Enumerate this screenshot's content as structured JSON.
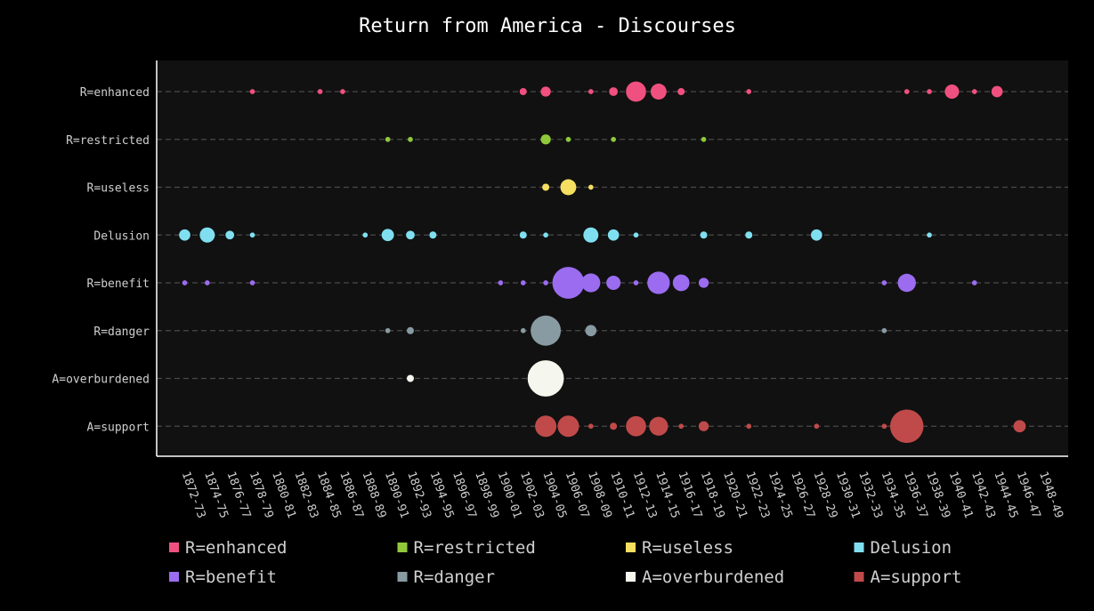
{
  "chart_data": {
    "type": "scatter",
    "title": "Return from America - Discourses",
    "xlabel": "",
    "ylabel": "",
    "x_categories": [
      "1872-73",
      "1874-75",
      "1876-77",
      "1878-79",
      "1880-81",
      "1882-83",
      "1884-85",
      "1886-87",
      "1888-89",
      "1890-91",
      "1892-93",
      "1894-95",
      "1896-97",
      "1898-99",
      "1900-01",
      "1902-03",
      "1904-05",
      "1906-07",
      "1908-09",
      "1910-11",
      "1912-13",
      "1914-15",
      "1916-17",
      "1918-19",
      "1920-21",
      "1922-23",
      "1924-25",
      "1926-27",
      "1928-29",
      "1930-31",
      "1932-33",
      "1934-35",
      "1936-37",
      "1938-39",
      "1940-41",
      "1942-43",
      "1944-45",
      "1946-47",
      "1948-49"
    ],
    "grid": true,
    "legend_position": "bottom",
    "series": [
      {
        "name": "R=enhanced",
        "color": "#f0507f",
        "points": [
          {
            "x": "1878-79",
            "v": 0.5
          },
          {
            "x": "1884-85",
            "v": 0.5
          },
          {
            "x": "1886-87",
            "v": 0.5
          },
          {
            "x": "1902-03",
            "v": 1
          },
          {
            "x": "1904-05",
            "v": 2
          },
          {
            "x": "1908-09",
            "v": 0.5
          },
          {
            "x": "1910-11",
            "v": 1.5
          },
          {
            "x": "1912-13",
            "v": 8
          },
          {
            "x": "1914-15",
            "v": 5
          },
          {
            "x": "1916-17",
            "v": 1
          },
          {
            "x": "1922-23",
            "v": 0.5
          },
          {
            "x": "1936-37",
            "v": 0.5
          },
          {
            "x": "1938-39",
            "v": 0.5
          },
          {
            "x": "1940-41",
            "v": 4
          },
          {
            "x": "1942-43",
            "v": 0.5
          },
          {
            "x": "1944-45",
            "v": 2.5
          }
        ]
      },
      {
        "name": "R=restricted",
        "color": "#8fc93a",
        "points": [
          {
            "x": "1890-91",
            "v": 0.5
          },
          {
            "x": "1892-93",
            "v": 0.5
          },
          {
            "x": "1904-05",
            "v": 2
          },
          {
            "x": "1906-07",
            "v": 0.5
          },
          {
            "x": "1910-11",
            "v": 0.5
          },
          {
            "x": "1918-19",
            "v": 0.5
          }
        ]
      },
      {
        "name": "R=useless",
        "color": "#f5de60",
        "points": [
          {
            "x": "1904-05",
            "v": 1
          },
          {
            "x": "1906-07",
            "v": 5
          },
          {
            "x": "1908-09",
            "v": 0.5
          }
        ]
      },
      {
        "name": "Delusion",
        "color": "#7fdff0",
        "points": [
          {
            "x": "1872-73",
            "v": 2.5
          },
          {
            "x": "1874-75",
            "v": 4.5
          },
          {
            "x": "1876-77",
            "v": 1.5
          },
          {
            "x": "1878-79",
            "v": 0.5
          },
          {
            "x": "1888-89",
            "v": 0.5
          },
          {
            "x": "1890-91",
            "v": 3
          },
          {
            "x": "1892-93",
            "v": 1.5
          },
          {
            "x": "1894-95",
            "v": 1
          },
          {
            "x": "1902-03",
            "v": 1
          },
          {
            "x": "1904-05",
            "v": 0.5
          },
          {
            "x": "1908-09",
            "v": 4.5
          },
          {
            "x": "1910-11",
            "v": 2.5
          },
          {
            "x": "1912-13",
            "v": 0.5
          },
          {
            "x": "1918-19",
            "v": 1
          },
          {
            "x": "1922-23",
            "v": 1
          },
          {
            "x": "1928-29",
            "v": 2.5
          },
          {
            "x": "1938-39",
            "v": 0.5
          }
        ]
      },
      {
        "name": "R=benefit",
        "color": "#9b6cf0",
        "points": [
          {
            "x": "1872-73",
            "v": 0.5
          },
          {
            "x": "1874-75",
            "v": 0.5
          },
          {
            "x": "1878-79",
            "v": 0.5
          },
          {
            "x": "1900-01",
            "v": 0.5
          },
          {
            "x": "1902-03",
            "v": 0.5
          },
          {
            "x": "1904-05",
            "v": 0.5
          },
          {
            "x": "1906-07",
            "v": 20
          },
          {
            "x": "1908-09",
            "v": 7
          },
          {
            "x": "1910-11",
            "v": 4
          },
          {
            "x": "1912-13",
            "v": 0.5
          },
          {
            "x": "1914-15",
            "v": 10
          },
          {
            "x": "1916-17",
            "v": 5.5
          },
          {
            "x": "1918-19",
            "v": 2
          },
          {
            "x": "1934-35",
            "v": 0.5
          },
          {
            "x": "1936-37",
            "v": 6.5
          },
          {
            "x": "1942-43",
            "v": 0.5
          }
        ]
      },
      {
        "name": "R=danger",
        "color": "#889aa2",
        "points": [
          {
            "x": "1890-91",
            "v": 0.5
          },
          {
            "x": "1892-93",
            "v": 1
          },
          {
            "x": "1902-03",
            "v": 0.5
          },
          {
            "x": "1904-05",
            "v": 18
          },
          {
            "x": "1908-09",
            "v": 2.5
          },
          {
            "x": "1934-35",
            "v": 0.5
          }
        ]
      },
      {
        "name": "A=overburdened",
        "color": "#f5f6ee",
        "points": [
          {
            "x": "1892-93",
            "v": 1
          },
          {
            "x": "1904-05",
            "v": 26
          }
        ]
      },
      {
        "name": "A=support",
        "color": "#c04a4a",
        "points": [
          {
            "x": "1904-05",
            "v": 9
          },
          {
            "x": "1906-07",
            "v": 9
          },
          {
            "x": "1908-09",
            "v": 0.5
          },
          {
            "x": "1910-11",
            "v": 1
          },
          {
            "x": "1912-13",
            "v": 8
          },
          {
            "x": "1914-15",
            "v": 7
          },
          {
            "x": "1916-17",
            "v": 0.5
          },
          {
            "x": "1918-19",
            "v": 2
          },
          {
            "x": "1922-23",
            "v": 0.5
          },
          {
            "x": "1928-29",
            "v": 0.5
          },
          {
            "x": "1934-35",
            "v": 0.5
          },
          {
            "x": "1936-37",
            "v": 22
          },
          {
            "x": "1946-47",
            "v": 3
          }
        ]
      }
    ],
    "colors": {
      "background": "#000000",
      "plot_background": "#111111",
      "grid": "#4a4a4a",
      "axis": "#ffffff",
      "text": "#cfcfcf"
    }
  }
}
